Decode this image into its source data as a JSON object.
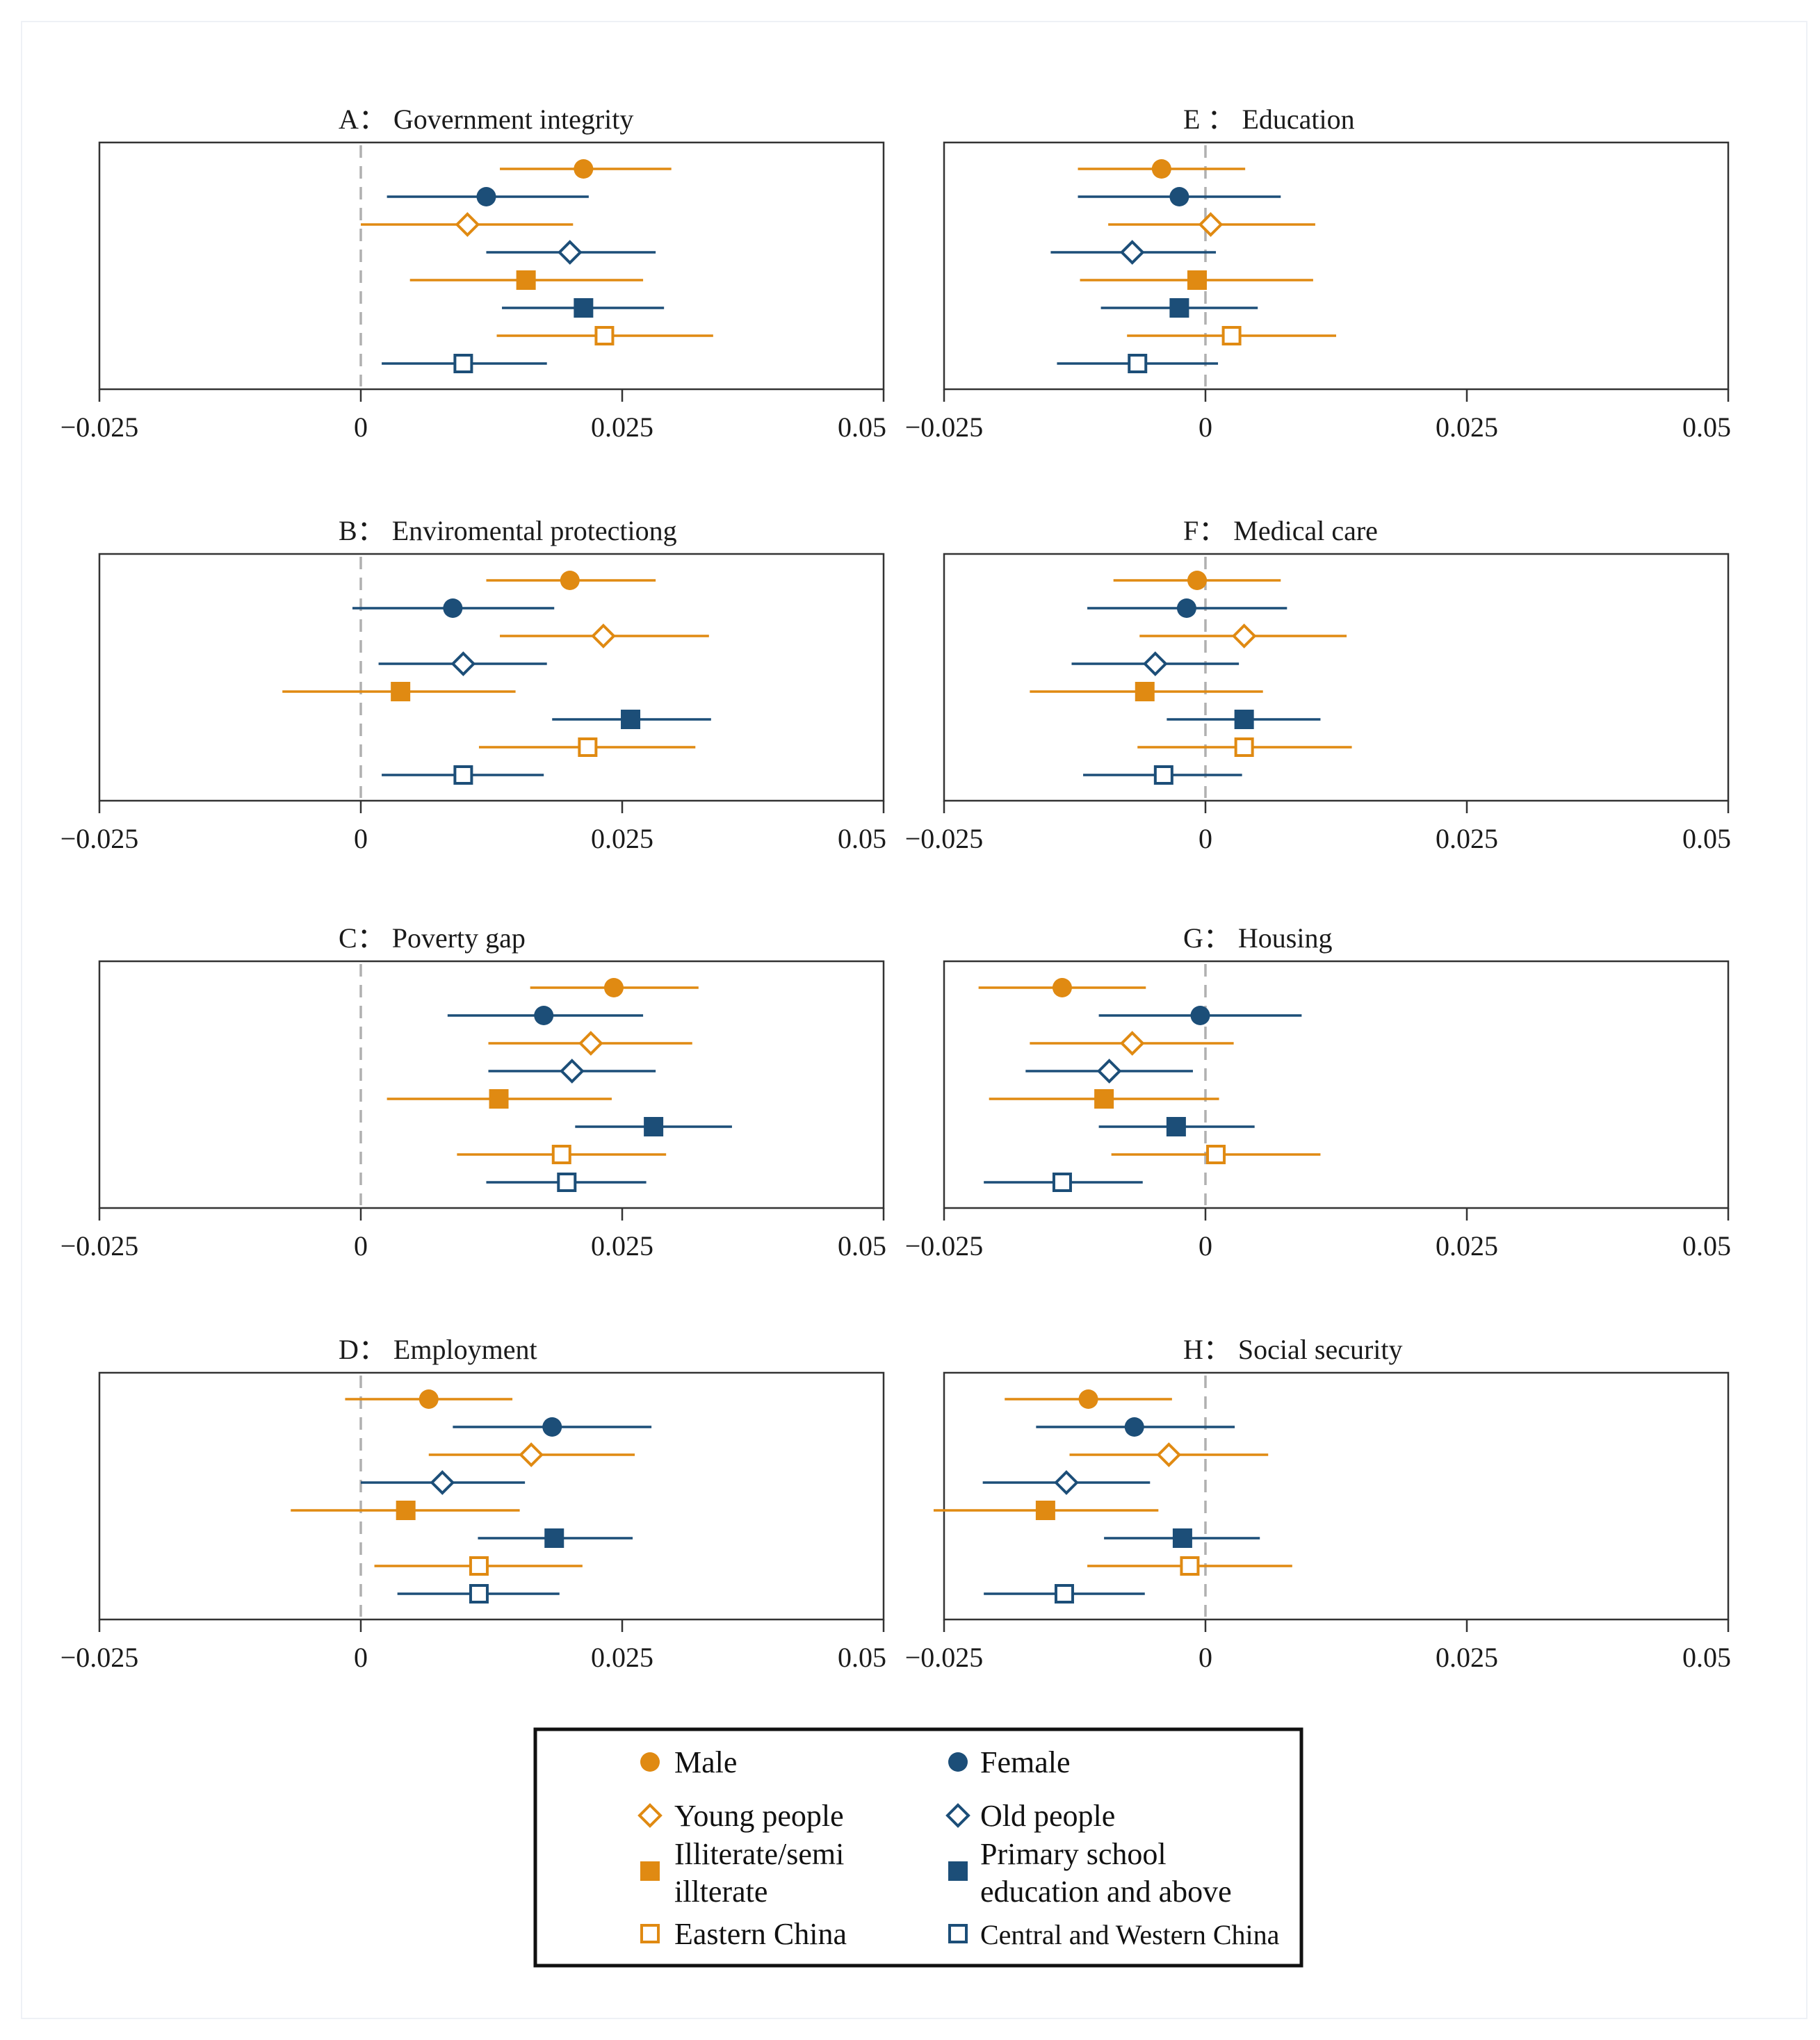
{
  "colors": {
    "orange": "#E08A12",
    "blue": "#1C4E78",
    "zero_line": "#b0b0b0",
    "axis": "#333333"
  },
  "x_tick_labels": [
    "−0.025",
    "0",
    "0.025",
    "0.05"
  ],
  "legend": [
    {
      "label": "Male",
      "color": "orange",
      "marker": "circle-filled"
    },
    {
      "label": "Female",
      "color": "blue",
      "marker": "circle-filled"
    },
    {
      "label": "Young people",
      "color": "orange",
      "marker": "diamond-open"
    },
    {
      "label": "Old people",
      "color": "blue",
      "marker": "diamond-open"
    },
    {
      "label": "Illiterate/semi illterate",
      "lines": [
        "Illiterate/semi",
        "illterate"
      ],
      "color": "orange",
      "marker": "square-filled"
    },
    {
      "label": "Primary school education and above",
      "lines": [
        "Primary school",
        "education and above"
      ],
      "color": "blue",
      "marker": "square-filled"
    },
    {
      "label": "Eastern China",
      "color": "orange",
      "marker": "square-open"
    },
    {
      "label": "Central and Western China",
      "color": "blue",
      "marker": "square-open"
    }
  ],
  "chart_data": [
    {
      "type": "scatter",
      "panel": "A",
      "title": "A： Government integrity",
      "xlim": [
        -0.025,
        0.05
      ],
      "ticks": [
        -0.025,
        0,
        0.025,
        0.05
      ],
      "series": [
        {
          "name": "Male",
          "estimate": 0.0213,
          "ci": [
            0.0133,
            0.0297
          ]
        },
        {
          "name": "Female",
          "estimate": 0.012,
          "ci": [
            0.0025,
            0.0218
          ]
        },
        {
          "name": "Young people",
          "estimate": 0.0102,
          "ci": [
            0.0,
            0.0203
          ]
        },
        {
          "name": "Old people",
          "estimate": 0.02,
          "ci": [
            0.012,
            0.0282
          ]
        },
        {
          "name": "Illiterate/semi illterate",
          "estimate": 0.0158,
          "ci": [
            0.0047,
            0.027
          ]
        },
        {
          "name": "Primary school education and above",
          "estimate": 0.0213,
          "ci": [
            0.0135,
            0.029
          ]
        },
        {
          "name": "Eastern China",
          "estimate": 0.0233,
          "ci": [
            0.013,
            0.0337
          ]
        },
        {
          "name": "Central and Western China",
          "estimate": 0.0098,
          "ci": [
            0.002,
            0.0178
          ]
        }
      ]
    },
    {
      "type": "scatter",
      "panel": "E",
      "title": "E ： Education",
      "xlim": [
        -0.025,
        0.05
      ],
      "ticks": [
        -0.025,
        0,
        0.025,
        0.05
      ],
      "series": [
        {
          "name": "Male",
          "estimate": -0.0042,
          "ci": [
            -0.0122,
            0.0038
          ]
        },
        {
          "name": "Female",
          "estimate": -0.0025,
          "ci": [
            -0.0122,
            0.0072
          ]
        },
        {
          "name": "Young people",
          "estimate": 0.0005,
          "ci": [
            -0.0093,
            0.0105
          ]
        },
        {
          "name": "Old people",
          "estimate": -0.007,
          "ci": [
            -0.0148,
            0.001
          ]
        },
        {
          "name": "Illiterate/semi illterate",
          "estimate": -0.0008,
          "ci": [
            -0.012,
            0.0103
          ]
        },
        {
          "name": "Primary school education and above",
          "estimate": -0.0025,
          "ci": [
            -0.01,
            0.005
          ]
        },
        {
          "name": "Eastern China",
          "estimate": 0.0025,
          "ci": [
            -0.0075,
            0.0125
          ]
        },
        {
          "name": "Central and Western China",
          "estimate": -0.0065,
          "ci": [
            -0.0142,
            0.0012
          ]
        }
      ]
    },
    {
      "type": "scatter",
      "panel": "B",
      "title": "B： Enviromental protectiong",
      "xlim": [
        -0.025,
        0.05
      ],
      "ticks": [
        -0.025,
        0,
        0.025,
        0.05
      ],
      "series": [
        {
          "name": "Male",
          "estimate": 0.02,
          "ci": [
            0.012,
            0.0282
          ]
        },
        {
          "name": "Female",
          "estimate": 0.0088,
          "ci": [
            -0.0008,
            0.0185
          ]
        },
        {
          "name": "Young people",
          "estimate": 0.0232,
          "ci": [
            0.0133,
            0.0333
          ]
        },
        {
          "name": "Old people",
          "estimate": 0.0098,
          "ci": [
            0.0017,
            0.0178
          ]
        },
        {
          "name": "Illiterate/semi illterate",
          "estimate": 0.0038,
          "ci": [
            -0.0075,
            0.0148
          ]
        },
        {
          "name": "Primary school education and above",
          "estimate": 0.0258,
          "ci": [
            0.0183,
            0.0335
          ]
        },
        {
          "name": "Eastern China",
          "estimate": 0.0217,
          "ci": [
            0.0113,
            0.032
          ]
        },
        {
          "name": "Central and Western China",
          "estimate": 0.0098,
          "ci": [
            0.002,
            0.0175
          ]
        }
      ]
    },
    {
      "type": "scatter",
      "panel": "F",
      "title": "F： Medical care",
      "xlim": [
        -0.025,
        0.05
      ],
      "ticks": [
        -0.025,
        0,
        0.025,
        0.05
      ],
      "series": [
        {
          "name": "Male",
          "estimate": -0.0008,
          "ci": [
            -0.0088,
            0.0072
          ]
        },
        {
          "name": "Female",
          "estimate": -0.0018,
          "ci": [
            -0.0113,
            0.0078
          ]
        },
        {
          "name": "Young people",
          "estimate": 0.0037,
          "ci": [
            -0.0063,
            0.0135
          ]
        },
        {
          "name": "Old people",
          "estimate": -0.0048,
          "ci": [
            -0.0128,
            0.0032
          ]
        },
        {
          "name": "Illiterate/semi illterate",
          "estimate": -0.0058,
          "ci": [
            -0.0168,
            0.0055
          ]
        },
        {
          "name": "Primary school education and above",
          "estimate": 0.0037,
          "ci": [
            -0.0037,
            0.011
          ]
        },
        {
          "name": "Eastern China",
          "estimate": 0.0037,
          "ci": [
            -0.0065,
            0.014
          ]
        },
        {
          "name": "Central and Western China",
          "estimate": -0.004,
          "ci": [
            -0.0117,
            0.0035
          ]
        }
      ]
    },
    {
      "type": "scatter",
      "panel": "C",
      "title": "C： Poverty gap",
      "xlim": [
        -0.025,
        0.05
      ],
      "ticks": [
        -0.025,
        0,
        0.025,
        0.05
      ],
      "series": [
        {
          "name": "Male",
          "estimate": 0.0242,
          "ci": [
            0.0162,
            0.0323
          ]
        },
        {
          "name": "Female",
          "estimate": 0.0175,
          "ci": [
            0.0083,
            0.027
          ]
        },
        {
          "name": "Young people",
          "estimate": 0.022,
          "ci": [
            0.0122,
            0.0317
          ]
        },
        {
          "name": "Old people",
          "estimate": 0.0202,
          "ci": [
            0.0122,
            0.0282
          ]
        },
        {
          "name": "Illiterate/semi illterate",
          "estimate": 0.0132,
          "ci": [
            0.0025,
            0.024
          ]
        },
        {
          "name": "Primary school education and above",
          "estimate": 0.028,
          "ci": [
            0.0205,
            0.0355
          ]
        },
        {
          "name": "Eastern China",
          "estimate": 0.0192,
          "ci": [
            0.0092,
            0.0292
          ]
        },
        {
          "name": "Central and Western China",
          "estimate": 0.0197,
          "ci": [
            0.012,
            0.0273
          ]
        }
      ]
    },
    {
      "type": "scatter",
      "panel": "G",
      "title": "G： Housing",
      "xlim": [
        -0.025,
        0.05
      ],
      "ticks": [
        -0.025,
        0,
        0.025,
        0.05
      ],
      "series": [
        {
          "name": "Male",
          "estimate": -0.0137,
          "ci": [
            -0.0217,
            -0.0057
          ]
        },
        {
          "name": "Female",
          "estimate": -0.0005,
          "ci": [
            -0.0102,
            0.0092
          ]
        },
        {
          "name": "Young people",
          "estimate": -0.007,
          "ci": [
            -0.0168,
            0.0027
          ]
        },
        {
          "name": "Old people",
          "estimate": -0.0092,
          "ci": [
            -0.0172,
            -0.0012
          ]
        },
        {
          "name": "Illiterate/semi illterate",
          "estimate": -0.0097,
          "ci": [
            -0.0207,
            0.0013
          ]
        },
        {
          "name": "Primary school education and above",
          "estimate": -0.0028,
          "ci": [
            -0.0102,
            0.0047
          ]
        },
        {
          "name": "Eastern China",
          "estimate": 0.001,
          "ci": [
            -0.009,
            0.011
          ]
        },
        {
          "name": "Central and Western China",
          "estimate": -0.0137,
          "ci": [
            -0.0212,
            -0.006
          ]
        }
      ]
    },
    {
      "type": "scatter",
      "panel": "D",
      "title": "D： Employment",
      "xlim": [
        -0.025,
        0.05
      ],
      "ticks": [
        -0.025,
        0,
        0.025,
        0.05
      ],
      "series": [
        {
          "name": "Male",
          "estimate": 0.0065,
          "ci": [
            -0.0015,
            0.0145
          ]
        },
        {
          "name": "Female",
          "estimate": 0.0183,
          "ci": [
            0.0088,
            0.0278
          ]
        },
        {
          "name": "Young people",
          "estimate": 0.0163,
          "ci": [
            0.0065,
            0.0262
          ]
        },
        {
          "name": "Old people",
          "estimate": 0.0078,
          "ci": [
            0.0,
            0.0157
          ]
        },
        {
          "name": "Illiterate/semi illterate",
          "estimate": 0.0043,
          "ci": [
            -0.0067,
            0.0152
          ]
        },
        {
          "name": "Primary school education and above",
          "estimate": 0.0185,
          "ci": [
            0.0112,
            0.026
          ]
        },
        {
          "name": "Eastern China",
          "estimate": 0.0113,
          "ci": [
            0.0013,
            0.0212
          ]
        },
        {
          "name": "Central and Western China",
          "estimate": 0.0113,
          "ci": [
            0.0035,
            0.019
          ]
        }
      ]
    },
    {
      "type": "scatter",
      "panel": "H",
      "title": "H： Social security",
      "xlim": [
        -0.025,
        0.05
      ],
      "ticks": [
        -0.025,
        0,
        0.025,
        0.05
      ],
      "series": [
        {
          "name": "Male",
          "estimate": -0.0112,
          "ci": [
            -0.0192,
            -0.0032
          ]
        },
        {
          "name": "Female",
          "estimate": -0.0068,
          "ci": [
            -0.0162,
            0.0028
          ]
        },
        {
          "name": "Young people",
          "estimate": -0.0035,
          "ci": [
            -0.013,
            0.006
          ]
        },
        {
          "name": "Old people",
          "estimate": -0.0133,
          "ci": [
            -0.0213,
            -0.0053
          ]
        },
        {
          "name": "Illiterate/semi illterate",
          "estimate": -0.0153,
          "ci": [
            -0.026,
            -0.0045
          ]
        },
        {
          "name": "Primary school education and above",
          "estimate": -0.0022,
          "ci": [
            -0.0097,
            0.0052
          ]
        },
        {
          "name": "Eastern China",
          "estimate": -0.0015,
          "ci": [
            -0.0113,
            0.0083
          ]
        },
        {
          "name": "Central and Western China",
          "estimate": -0.0135,
          "ci": [
            -0.0212,
            -0.0058
          ]
        }
      ]
    }
  ]
}
